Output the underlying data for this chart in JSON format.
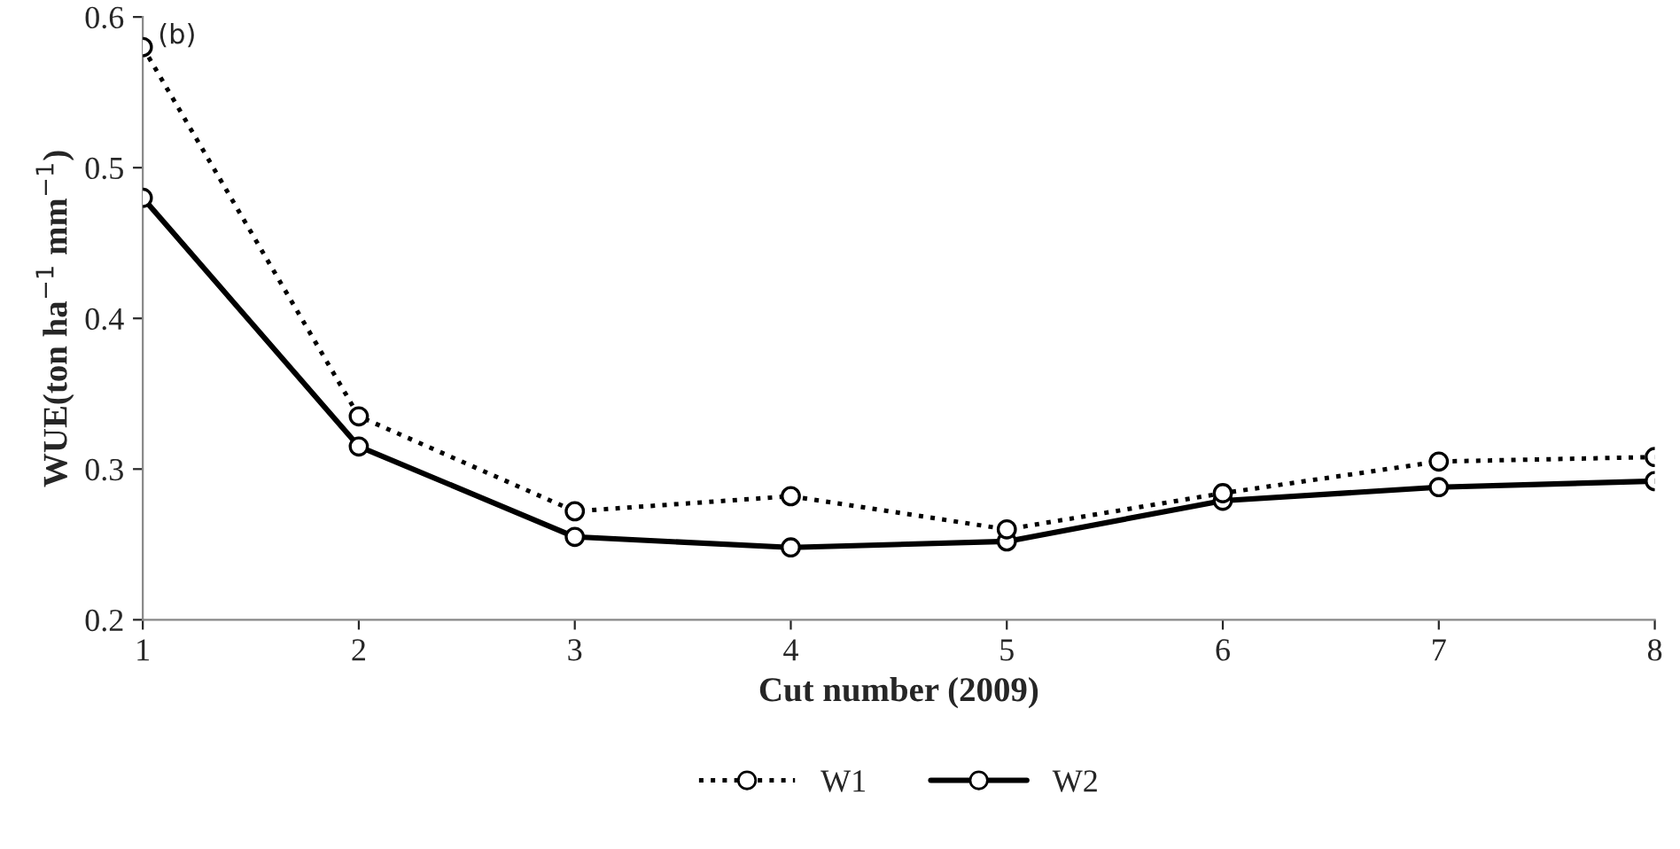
{
  "chart_data": {
    "type": "line",
    "xlabel": "Cut number (2009)",
    "ylabel": "WUE(ton ha$^{−1}$ mm$^{−1}$)",
    "x": [
      1,
      2,
      3,
      4,
      5,
      6,
      7,
      8
    ],
    "series": [
      {
        "name": "W1",
        "color": "#000000",
        "line_style": "dotted",
        "marker": "circle",
        "values": [
          0.58,
          0.335,
          0.272,
          0.282,
          0.26,
          0.284,
          0.305,
          0.308
        ]
      },
      {
        "name": "W2",
        "color": "#000000",
        "line_style": "solid",
        "marker": "circle",
        "values": [
          0.48,
          0.315,
          0.255,
          0.248,
          0.252,
          0.279,
          0.288,
          0.292
        ]
      }
    ],
    "xlim": [
      1,
      8
    ],
    "xticks": [
      1,
      2,
      3,
      4,
      5,
      6,
      7,
      8
    ],
    "ylim": [
      0.2,
      0.6
    ],
    "yticks": [
      {
        "value": 0.2,
        "label": "0.2"
      },
      {
        "value": 0.3,
        "label": "0.3"
      },
      {
        "value": 0.4,
        "label": "0.4"
      },
      {
        "value": 0.5,
        "label": "0.5"
      },
      {
        "value": 0.6,
        "label": "0.6"
      }
    ],
    "annotations": [
      "(b)"
    ],
    "grid": false,
    "legend": "bottom"
  }
}
